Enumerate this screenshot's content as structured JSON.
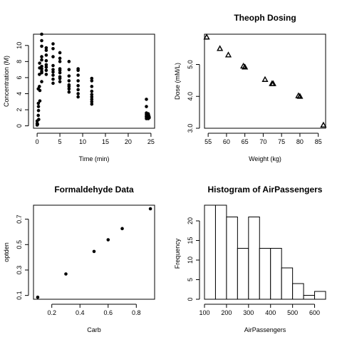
{
  "chart_data": [
    {
      "type": "scatter",
      "title": "",
      "xlabel": "Time (min)",
      "ylabel": "Concentration (M)",
      "xlim": [
        -0.8,
        25.8
      ],
      "ylim": [
        -0.3,
        11.4
      ],
      "xticks": [
        0,
        5,
        10,
        15,
        20,
        25
      ],
      "yticks": [
        0,
        2,
        4,
        6,
        8,
        10
      ],
      "marker": "filled-circle",
      "points": [
        [
          0,
          0.1
        ],
        [
          0,
          0.3
        ],
        [
          0,
          0.6
        ],
        [
          0.1,
          0.2
        ],
        [
          0.25,
          1.3
        ],
        [
          0.27,
          2.8
        ],
        [
          0.3,
          1.9
        ],
        [
          0.25,
          4.6
        ],
        [
          0.3,
          2.4
        ],
        [
          0.35,
          0.8
        ],
        [
          0.5,
          4.9
        ],
        [
          0.5,
          6.4
        ],
        [
          0.55,
          7.2
        ],
        [
          0.55,
          7.8
        ],
        [
          0.6,
          3.1
        ],
        [
          0.6,
          4.4
        ],
        [
          1,
          5.5
        ],
        [
          1,
          6.8
        ],
        [
          1,
          7.4
        ],
        [
          1,
          8.2
        ],
        [
          1,
          8.6
        ],
        [
          1,
          9.9
        ],
        [
          1,
          10.6
        ],
        [
          1,
          11.4
        ],
        [
          1,
          6.6
        ],
        [
          1,
          7.1
        ],
        [
          2,
          6.4
        ],
        [
          2,
          7.6
        ],
        [
          2,
          8.1
        ],
        [
          2,
          8.8
        ],
        [
          2,
          9.4
        ],
        [
          2,
          9.7
        ],
        [
          2,
          6.9
        ],
        [
          2,
          7.3
        ],
        [
          3.5,
          5.3
        ],
        [
          3.5,
          6.3
        ],
        [
          3.5,
          7.0
        ],
        [
          3.5,
          7.5
        ],
        [
          3.5,
          8.6
        ],
        [
          3.5,
          9.6
        ],
        [
          3.5,
          10.2
        ],
        [
          3.5,
          6.7
        ],
        [
          3.5,
          5.8
        ],
        [
          5,
          5.5
        ],
        [
          5,
          6.1
        ],
        [
          5,
          6.6
        ],
        [
          5,
          7.1
        ],
        [
          5,
          8.0
        ],
        [
          5,
          8.4
        ],
        [
          5,
          9.1
        ],
        [
          5,
          5.9
        ],
        [
          5,
          6.9
        ],
        [
          7,
          4.2
        ],
        [
          7,
          4.6
        ],
        [
          7,
          5.1
        ],
        [
          7,
          5.6
        ],
        [
          7,
          6.2
        ],
        [
          7,
          7.0
        ],
        [
          7,
          8.0
        ],
        [
          7,
          4.9
        ],
        [
          9,
          3.6
        ],
        [
          9,
          4.0
        ],
        [
          9,
          4.5
        ],
        [
          9,
          5.0
        ],
        [
          9,
          5.6
        ],
        [
          9,
          6.3
        ],
        [
          9,
          6.9
        ],
        [
          9,
          7.1
        ],
        [
          12,
          2.7
        ],
        [
          12,
          3.0
        ],
        [
          12,
          3.3
        ],
        [
          12,
          3.6
        ],
        [
          12,
          4.3
        ],
        [
          12,
          4.9
        ],
        [
          12,
          5.6
        ],
        [
          12,
          5.9
        ],
        [
          12,
          3.9
        ],
        [
          24,
          0.9
        ],
        [
          24,
          1.1
        ],
        [
          24,
          1.2
        ],
        [
          24,
          1.4
        ],
        [
          24,
          1.6
        ],
        [
          24,
          2.4
        ],
        [
          24,
          3.3
        ],
        [
          24.4,
          0.9
        ],
        [
          24.5,
          1.3
        ],
        [
          24.6,
          1.1
        ],
        [
          24.4,
          1.5
        ],
        [
          24.6,
          1.0
        ]
      ]
    },
    {
      "type": "scatter",
      "title": "Theoph Dosing",
      "xlabel": "Weight (kg)",
      "ylabel": "Dose (mM/L)",
      "xlim": [
        54,
        87
      ],
      "ylim": [
        3.0,
        5.95
      ],
      "xticks": [
        55,
        60,
        65,
        70,
        75,
        80,
        85
      ],
      "yticks": [
        3.0,
        4.0,
        5.0
      ],
      "ytick_labels": [
        "3.0",
        "4.0",
        "5.0"
      ],
      "marker": "open-triangle",
      "points": [
        [
          54.6,
          5.86
        ],
        [
          58.2,
          5.5
        ],
        [
          60.5,
          5.3
        ],
        [
          64.6,
          4.95
        ],
        [
          65.0,
          4.92
        ],
        [
          70.5,
          4.53
        ],
        [
          72.4,
          4.4
        ],
        [
          72.7,
          4.4
        ],
        [
          79.6,
          4.02
        ],
        [
          80.0,
          4.0
        ],
        [
          86.4,
          3.1
        ]
      ]
    },
    {
      "type": "scatter",
      "title": "Formaldehyde Data",
      "xlabel": "Carb",
      "ylabel": "optden",
      "xlim": [
        0.07,
        0.93
      ],
      "ylim": [
        0.07,
        0.81
      ],
      "xticks": [
        0.2,
        0.4,
        0.6,
        0.8
      ],
      "yticks": [
        0.1,
        0.3,
        0.5,
        0.7
      ],
      "marker": "filled-circle",
      "points": [
        [
          0.1,
          0.086
        ],
        [
          0.3,
          0.269
        ],
        [
          0.5,
          0.446
        ],
        [
          0.6,
          0.538
        ],
        [
          0.7,
          0.626
        ],
        [
          0.9,
          0.782
        ]
      ]
    },
    {
      "type": "bar",
      "title": "Histogram of AirPassengers",
      "xlabel": "AirPassengers",
      "ylabel": "Frequency",
      "xlim": [
        100,
        650
      ],
      "ylim": [
        0,
        24
      ],
      "xticks": [
        100,
        200,
        300,
        400,
        500,
        600
      ],
      "yticks": [
        0,
        5,
        10,
        15,
        20
      ],
      "bins": [
        [
          100,
          150
        ],
        [
          150,
          200
        ],
        [
          200,
          250
        ],
        [
          250,
          300
        ],
        [
          300,
          350
        ],
        [
          350,
          400
        ],
        [
          400,
          450
        ],
        [
          450,
          500
        ],
        [
          500,
          550
        ],
        [
          550,
          600
        ],
        [
          600,
          650
        ]
      ],
      "values": [
        24,
        24,
        21,
        13,
        21,
        13,
        13,
        8,
        4,
        1,
        2
      ]
    }
  ]
}
